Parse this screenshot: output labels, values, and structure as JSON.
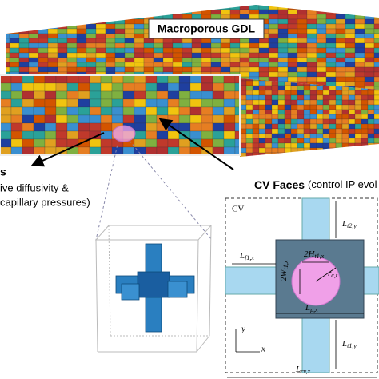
{
  "title": "Macroporous GDL",
  "left_label": {
    "heading": "s",
    "line1": "ive diffusivity &",
    "line2": "capillary pressures)"
  },
  "right_label": {
    "heading": "CV Faces",
    "rest": "(control IP evol"
  },
  "schematic": {
    "box_label": "CV",
    "dims": [
      {
        "main": "L",
        "sub": "t2,y"
      },
      {
        "main": "L",
        "sub": "f1,x"
      },
      {
        "main": "2H",
        "sub": "t1,x"
      },
      {
        "main": "r",
        "sub": "c,t"
      },
      {
        "main": "2W",
        "sub": "t1,x"
      },
      {
        "main": "L",
        "sub": "p,x"
      },
      {
        "main": "L",
        "sub": "t1,y"
      },
      {
        "main": "L",
        "sub": "cv,x"
      }
    ],
    "axis_y": "y",
    "axis_x": "x"
  }
}
